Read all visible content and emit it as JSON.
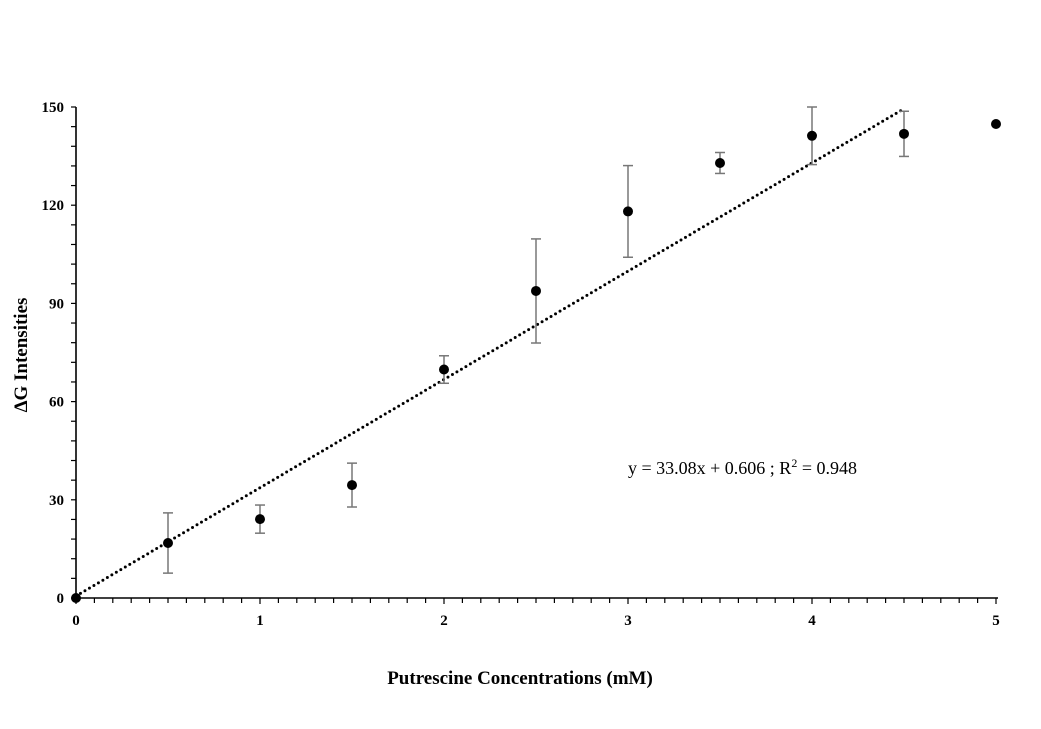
{
  "chart_data": {
    "type": "scatter",
    "title": "",
    "xlabel": "Putrescine Concentrations (mM)",
    "ylabel": "ΔG Intensities",
    "xlim": [
      0,
      5
    ],
    "ylim": [
      0,
      150
    ],
    "xticks": [
      "0",
      "1",
      "2",
      "3",
      "4",
      "5"
    ],
    "yticks": [
      "0",
      "30",
      "60",
      "90",
      "120",
      "150"
    ],
    "x_minor_step": 0.1,
    "y_minor_step": 6,
    "grid": false,
    "series": [
      {
        "name": "ΔG Intensities",
        "x": [
          0,
          0.5,
          1,
          1.5,
          2,
          2.5,
          3,
          3.5,
          4,
          4.5,
          5
        ],
        "y": [
          0,
          16.8,
          24.1,
          34.5,
          69.8,
          93.8,
          118.1,
          132.9,
          141.2,
          141.8,
          144.8
        ],
        "error": [
          0,
          9.2,
          4.3,
          6.7,
          4.2,
          15.9,
          14.0,
          3.2,
          8.8,
          6.9,
          0
        ]
      }
    ],
    "trendline": {
      "slope": 33.08,
      "intercept": 0.606,
      "x_range": [
        0,
        4.5
      ],
      "style": "dotted"
    },
    "annotations": {
      "equation_main": "y = 33.08x + 0.606 ; R",
      "equation_sup": "2",
      "equation_tail": " = 0.948"
    }
  }
}
